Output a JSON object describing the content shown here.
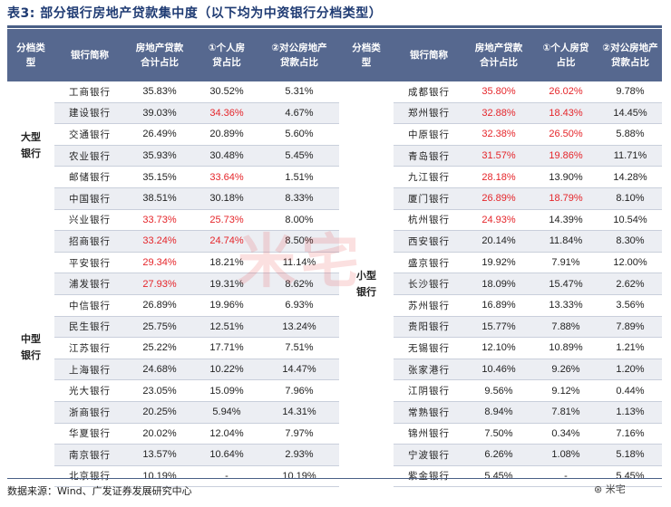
{
  "title": "表3:  部分银行房地产贷款集中度（以下均为中资银行分档类型）",
  "headers": {
    "tier": "分档类\n型",
    "bank": "银行简称",
    "total": "房地产贷款\n合计占比",
    "personal": "①个人房\n贷占比",
    "corporate": "②对公房地产\n贷款占比"
  },
  "headers_right": {
    "tier": "分档类\n型",
    "bank": "银行简称",
    "total": "房地产贷款\n合计占比",
    "personal": "①个人房贷\n占比",
    "corporate": "②对公房地产\n贷款占比"
  },
  "categories": {
    "large": "大型\n银行",
    "medium": "中型\n银行",
    "small": "小型\n银行"
  },
  "left_rows": [
    {
      "bank": "工商银行",
      "total": "35.83%",
      "personal": "30.52%",
      "corporate": "5.31%",
      "red": []
    },
    {
      "bank": "建设银行",
      "total": "39.03%",
      "personal": "34.36%",
      "corporate": "4.67%",
      "red": [
        "personal"
      ]
    },
    {
      "bank": "交通银行",
      "total": "26.49%",
      "personal": "20.89%",
      "corporate": "5.60%",
      "red": []
    },
    {
      "bank": "农业银行",
      "total": "35.93%",
      "personal": "30.48%",
      "corporate": "5.45%",
      "red": []
    },
    {
      "bank": "邮储银行",
      "total": "35.15%",
      "personal": "33.64%",
      "corporate": "1.51%",
      "red": [
        "personal"
      ]
    },
    {
      "bank": "中国银行",
      "total": "38.51%",
      "personal": "30.18%",
      "corporate": "8.33%",
      "red": []
    },
    {
      "bank": "兴业银行",
      "total": "33.73%",
      "personal": "25.73%",
      "corporate": "8.00%",
      "red": [
        "total",
        "personal"
      ]
    },
    {
      "bank": "招商银行",
      "total": "33.24%",
      "personal": "24.74%",
      "corporate": "8.50%",
      "red": [
        "total",
        "personal"
      ]
    },
    {
      "bank": "平安银行",
      "total": "29.34%",
      "personal": "18.21%",
      "corporate": "11.14%",
      "red": [
        "total"
      ]
    },
    {
      "bank": "浦发银行",
      "total": "27.93%",
      "personal": "19.31%",
      "corporate": "8.62%",
      "red": [
        "total"
      ]
    },
    {
      "bank": "中信银行",
      "total": "26.89%",
      "personal": "19.96%",
      "corporate": "6.93%",
      "red": []
    },
    {
      "bank": "民生银行",
      "total": "25.75%",
      "personal": "12.51%",
      "corporate": "13.24%",
      "red": []
    },
    {
      "bank": "江苏银行",
      "total": "25.22%",
      "personal": "17.71%",
      "corporate": "7.51%",
      "red": []
    },
    {
      "bank": "上海银行",
      "total": "24.68%",
      "personal": "10.22%",
      "corporate": "14.47%",
      "red": []
    },
    {
      "bank": "光大银行",
      "total": "23.05%",
      "personal": "15.09%",
      "corporate": "7.96%",
      "red": []
    },
    {
      "bank": "浙商银行",
      "total": "20.25%",
      "personal": "5.94%",
      "corporate": "14.31%",
      "red": []
    },
    {
      "bank": "华夏银行",
      "total": "20.02%",
      "personal": "12.04%",
      "corporate": "7.97%",
      "red": []
    },
    {
      "bank": "南京银行",
      "total": "13.57%",
      "personal": "10.64%",
      "corporate": "2.93%",
      "red": []
    },
    {
      "bank": "北京银行",
      "total": "10.19%",
      "personal": "-",
      "corporate": "10.19%",
      "red": []
    }
  ],
  "right_rows": [
    {
      "bank": "成都银行",
      "total": "35.80%",
      "personal": "26.02%",
      "corporate": "9.78%",
      "red": [
        "total",
        "personal"
      ]
    },
    {
      "bank": "郑州银行",
      "total": "32.88%",
      "personal": "18.43%",
      "corporate": "14.45%",
      "red": [
        "total",
        "personal"
      ]
    },
    {
      "bank": "中原银行",
      "total": "32.38%",
      "personal": "26.50%",
      "corporate": "5.88%",
      "red": [
        "total",
        "personal"
      ]
    },
    {
      "bank": "青岛银行",
      "total": "31.57%",
      "personal": "19.86%",
      "corporate": "11.71%",
      "red": [
        "total",
        "personal"
      ]
    },
    {
      "bank": "九江银行",
      "total": "28.18%",
      "personal": "13.90%",
      "corporate": "14.28%",
      "red": [
        "total"
      ]
    },
    {
      "bank": "厦门银行",
      "total": "26.89%",
      "personal": "18.79%",
      "corporate": "8.10%",
      "red": [
        "total",
        "personal"
      ]
    },
    {
      "bank": "杭州银行",
      "total": "24.93%",
      "personal": "14.39%",
      "corporate": "10.54%",
      "red": [
        "total"
      ]
    },
    {
      "bank": "西安银行",
      "total": "20.14%",
      "personal": "11.84%",
      "corporate": "8.30%",
      "red": []
    },
    {
      "bank": "盛京银行",
      "total": "19.92%",
      "personal": "7.91%",
      "corporate": "12.00%",
      "red": []
    },
    {
      "bank": "长沙银行",
      "total": "18.09%",
      "personal": "15.47%",
      "corporate": "2.62%",
      "red": []
    },
    {
      "bank": "苏州银行",
      "total": "16.89%",
      "personal": "13.33%",
      "corporate": "3.56%",
      "red": []
    },
    {
      "bank": "贵阳银行",
      "total": "15.77%",
      "personal": "7.88%",
      "corporate": "7.89%",
      "red": []
    },
    {
      "bank": "无锡银行",
      "total": "12.10%",
      "personal": "10.89%",
      "corporate": "1.21%",
      "red": []
    },
    {
      "bank": "张家港行",
      "total": "10.46%",
      "personal": "9.26%",
      "corporate": "1.20%",
      "red": []
    },
    {
      "bank": "江阴银行",
      "total": "9.56%",
      "personal": "9.12%",
      "corporate": "0.44%",
      "red": []
    },
    {
      "bank": "常熟银行",
      "total": "8.94%",
      "personal": "7.81%",
      "corporate": "1.13%",
      "red": []
    },
    {
      "bank": "锦州银行",
      "total": "7.50%",
      "personal": "0.34%",
      "corporate": "7.16%",
      "red": []
    },
    {
      "bank": "宁波银行",
      "total": "6.26%",
      "personal": "1.08%",
      "corporate": "5.18%",
      "red": []
    },
    {
      "bank": "紫金银行",
      "total": "5.45%",
      "personal": "-",
      "corporate": "5.45%",
      "red": []
    }
  ],
  "source": "数据来源：Wind、广发证券发展研究中心",
  "watermark": "米宅",
  "logo": "米宅",
  "colors": {
    "header_bg": "#56688f",
    "stripe": "#eceef3",
    "highlight": "#e5252a",
    "title": "#1f3b73"
  }
}
